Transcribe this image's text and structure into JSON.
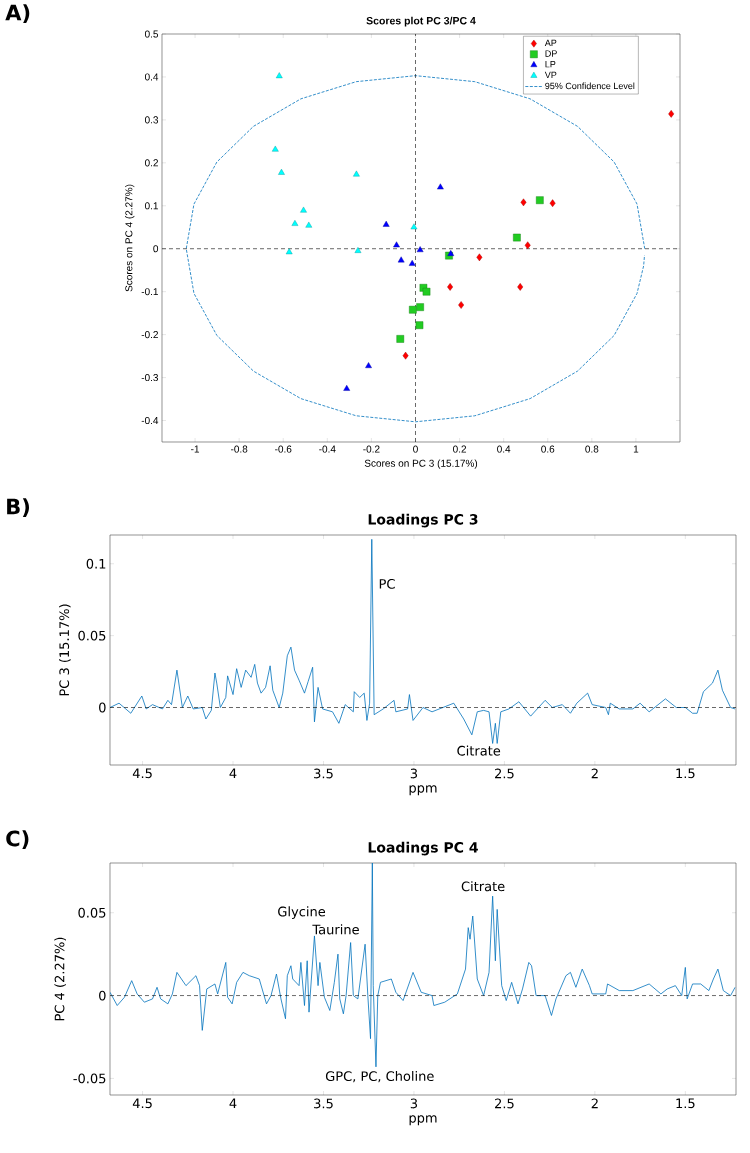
{
  "chart_data": [
    {
      "type": "scatter",
      "title": "Scores plot PC 3/PC 4",
      "xlabel": "Scores on PC 3 (15.17%)",
      "ylabel": "Scores on PC 4 (2.27%)",
      "annotations": [
        "A)"
      ],
      "xlim": [
        -1.15,
        1.2
      ],
      "ylim": [
        -0.45,
        0.5
      ],
      "xticks": [
        -1,
        -0.8,
        -0.6,
        -0.4,
        -0.2,
        0,
        0.2,
        0.4,
        0.6,
        0.8,
        1
      ],
      "yticks": [
        -0.4,
        -0.3,
        -0.2,
        -0.1,
        0,
        0.1,
        0.2,
        0.3,
        0.4,
        0.5
      ],
      "legend": "top right",
      "ref_lines": [
        {
          "axis": "x",
          "value": 0,
          "color": "#000000",
          "line_style": "dashed"
        },
        {
          "axis": "y",
          "value": 0,
          "color": "#000000",
          "line_style": "dashed"
        }
      ],
      "series": [
        {
          "name": "AP",
          "color": "#ff0000",
          "marker": "diamond",
          "x": [
            1.16,
            0.49,
            0.622,
            0.509,
            0.29,
            0.157,
            0.475,
            0.207,
            -0.045
          ],
          "values": [
            0.314,
            0.108,
            0.106,
            0.008,
            -0.02,
            -0.089,
            -0.089,
            -0.131,
            -0.249
          ]
        },
        {
          "name": "DP",
          "color": "#22cc22",
          "marker": "square",
          "x": [
            0.564,
            0.46,
            0.152,
            0.036,
            0.05,
            0.021,
            -0.012,
            0.018,
            -0.069
          ],
          "values": [
            0.113,
            0.026,
            -0.016,
            -0.091,
            -0.1,
            -0.136,
            -0.142,
            -0.178,
            -0.21
          ]
        },
        {
          "name": "LP",
          "color": "#0000ff",
          "marker": "triangle",
          "x": [
            0.113,
            -0.133,
            -0.086,
            0.021,
            0.16,
            -0.065,
            -0.015,
            -0.213,
            -0.312
          ],
          "values": [
            0.143,
            0.056,
            0.008,
            -0.003,
            -0.012,
            -0.027,
            -0.035,
            -0.273,
            -0.326
          ]
        },
        {
          "name": "VP",
          "color": "#00ffff",
          "marker": "triangle",
          "x": [
            -0.618,
            -0.636,
            -0.608,
            -0.268,
            -0.508,
            -0.547,
            -0.484,
            -0.007,
            -0.573,
            -0.261
          ],
          "values": [
            0.402,
            0.231,
            0.177,
            0.173,
            0.089,
            0.058,
            0.054,
            0.05,
            -0.008,
            -0.005
          ]
        },
        {
          "name": "95% Confidence Level",
          "type": "line",
          "color": "#0072bd",
          "marker": "none",
          "line_style": "dashed",
          "x": [
            1.04,
            1.005,
            0.901,
            0.735,
            0.52,
            0.269,
            0,
            -0.269,
            -0.52,
            -0.735,
            -0.901,
            -1.005,
            -1.04,
            -1.005,
            -0.901,
            -0.735,
            -0.52,
            -0.269,
            0,
            0.269,
            0.52,
            0.735,
            0.901,
            1.005,
            1.035,
            1.039
          ],
          "values": [
            0,
            0.104,
            0.202,
            0.285,
            0.349,
            0.389,
            0.403,
            0.389,
            0.349,
            0.285,
            0.202,
            0.104,
            0,
            -0.104,
            -0.202,
            -0.285,
            -0.349,
            -0.389,
            -0.403,
            -0.389,
            -0.349,
            -0.285,
            -0.202,
            -0.104,
            -0.04,
            -0.015
          ]
        }
      ]
    },
    {
      "type": "line",
      "title": "Loadings PC 3",
      "xlabel": "ppm",
      "ylabel": "PC 3 (15.17%)",
      "annotations": [
        "B)",
        "PC",
        "Citrate"
      ],
      "xlim": [
        4.68,
        1.22
      ],
      "ylim": [
        -0.04,
        0.12
      ],
      "xticks": [
        4.5,
        4,
        3.5,
        3,
        2.5,
        2,
        1.5
      ],
      "yticks": [
        0,
        0.05,
        0.1
      ],
      "ref_lines": [
        {
          "axis": "y",
          "value": 0,
          "color": "#000000",
          "line_style": "dashed"
        }
      ],
      "series": [
        {
          "color": "#0072bd",
          "x": [
            4.68,
            4.63,
            4.565,
            4.504,
            4.48,
            4.445,
            4.39,
            4.36,
            4.34,
            4.31,
            4.28,
            4.25,
            4.22,
            4.17,
            4.15,
            4.12,
            4.1,
            4.09,
            4.07,
            4.04,
            4.03,
            4.0,
            3.98,
            3.955,
            3.93,
            3.9,
            3.88,
            3.865,
            3.845,
            3.82,
            3.795,
            3.78,
            3.745,
            3.725,
            3.7,
            3.68,
            3.66,
            3.635,
            3.605,
            3.585,
            3.56,
            3.55,
            3.53,
            3.505,
            3.45,
            3.415,
            3.38,
            3.335,
            3.33,
            3.3,
            3.275,
            3.26,
            3.245,
            3.233,
            3.22,
            3.17,
            3.11,
            3.1,
            3.035,
            3.025,
            3.005,
            2.95,
            2.9,
            2.78,
            2.725,
            2.68,
            2.65,
            2.615,
            2.585,
            2.565,
            2.55,
            2.54,
            2.52,
            2.475,
            2.42,
            2.355,
            2.275,
            2.235,
            2.18,
            2.135,
            2.1,
            2.04,
            2.015,
            1.94,
            1.925,
            1.915,
            1.865,
            1.79,
            1.75,
            1.7,
            1.61,
            1.55,
            1.5,
            1.46,
            1.435,
            1.4,
            1.35,
            1.32,
            1.295,
            1.25,
            1.225
          ],
          "values": [
            0,
            0.003,
            -0.004,
            0.008,
            -0.001,
            0.002,
            -0.001,
            0.005,
            0.002,
            0.026,
            0,
            0.008,
            -0.001,
            0,
            -0.008,
            -0.002,
            0.024,
            0.017,
            0,
            0.007,
            0.022,
            0.009,
            0.027,
            0.014,
            0.026,
            0.021,
            0.03,
            0.017,
            0.01,
            0.014,
            0.029,
            0.012,
            0,
            0.01,
            0.036,
            0.042,
            0.026,
            0.019,
            0.01,
            0.018,
            0.028,
            -0.01,
            0.014,
            -0.001,
            -0.003,
            -0.011,
            0.002,
            -0.003,
            0.011,
            0.007,
            0.01,
            -0.009,
            0.003,
            0.117,
            -0.005,
            -0.001,
            0.005,
            -0.003,
            -0.001,
            0.009,
            -0.009,
            0,
            -0.003,
            0.003,
            -0.008,
            -0.019,
            -0.003,
            -0.002,
            -0.003,
            -0.025,
            -0.011,
            -0.025,
            -0.003,
            -0.001,
            0.004,
            -0.006,
            0.005,
            0,
            0.002,
            -0.004,
            0.003,
            0.01,
            0.002,
            0,
            -0.005,
            0.003,
            -0.001,
            -0.001,
            0.003,
            -0.003,
            0.006,
            0,
            0,
            -0.004,
            -0.004,
            0.011,
            0.017,
            0.026,
            0.012,
            0,
            -0.001
          ]
        }
      ]
    },
    {
      "type": "line",
      "title": "Loadings PC 4",
      "xlabel": "ppm",
      "ylabel": "PC 4 (2.27%)",
      "annotations": [
        "C)",
        "Glycine",
        "Taurine",
        "GPC, PC, Choline",
        "Citrate"
      ],
      "xlim": [
        4.68,
        1.22
      ],
      "ylim": [
        -0.06,
        0.08
      ],
      "xticks": [
        4.5,
        4,
        3.5,
        3,
        2.5,
        2,
        1.5
      ],
      "yticks": [
        -0.05,
        0,
        0.05
      ],
      "ref_lines": [
        {
          "axis": "y",
          "value": 0,
          "color": "#000000",
          "line_style": "dashed"
        }
      ],
      "series": [
        {
          "color": "#0072bd",
          "x": [
            4.68,
            4.64,
            4.6,
            4.56,
            4.53,
            4.49,
            4.445,
            4.42,
            4.4,
            4.36,
            4.335,
            4.31,
            4.26,
            4.205,
            4.185,
            4.17,
            4.145,
            4.1,
            4.085,
            4.04,
            4.03,
            4.005,
            3.98,
            3.945,
            3.91,
            3.855,
            3.815,
            3.79,
            3.76,
            3.735,
            3.71,
            3.7,
            3.68,
            3.67,
            3.635,
            3.625,
            3.605,
            3.59,
            3.58,
            3.55,
            3.53,
            3.52,
            3.495,
            3.465,
            3.44,
            3.42,
            3.41,
            3.39,
            3.375,
            3.35,
            3.335,
            3.31,
            3.27,
            3.255,
            3.24,
            3.23,
            3.225,
            3.21,
            3.2,
            3.185,
            3.125,
            3.1,
            3.06,
            3.005,
            2.96,
            2.9,
            2.89,
            2.83,
            2.76,
            2.715,
            2.7,
            2.69,
            2.675,
            2.65,
            2.615,
            2.585,
            2.565,
            2.55,
            2.54,
            2.515,
            2.49,
            2.46,
            2.425,
            2.4,
            2.365,
            2.35,
            2.325,
            2.275,
            2.24,
            2.215,
            2.16,
            2.135,
            2.105,
            2.07,
            2.03,
            2.015,
            1.94,
            1.93,
            1.865,
            1.79,
            1.7,
            1.635,
            1.6,
            1.555,
            1.52,
            1.5,
            1.49,
            1.46,
            1.415,
            1.37,
            1.345,
            1.32,
            1.29,
            1.25,
            1.225
          ],
          "values": [
            0.002,
            -0.006,
            -0.001,
            0.009,
            0.001,
            -0.004,
            -0.002,
            0.005,
            -0.002,
            -0.005,
            0.001,
            0.014,
            0.006,
            0.012,
            0.006,
            -0.021,
            0.004,
            0.007,
            0.001,
            0.02,
            -0.001,
            -0.005,
            0.008,
            0.014,
            0.012,
            0.01,
            -0.005,
            0,
            0.013,
            -0.002,
            -0.014,
            0.012,
            0.018,
            0.01,
            0.006,
            0.02,
            -0.006,
            0.021,
            -0.01,
            0.036,
            0.006,
            0.02,
            -0.001,
            -0.009,
            0.008,
            0.025,
            -0.002,
            -0.011,
            0,
            0.032,
            0,
            -0.002,
            0.031,
            0,
            -0.026,
            0.08,
            0.006,
            -0.043,
            0,
            0.008,
            0.01,
            0.002,
            -0.003,
            0.014,
            0.002,
            0,
            -0.006,
            -0.004,
            0.001,
            0.016,
            0.041,
            0.034,
            0.048,
            0.01,
            0,
            0.014,
            0.06,
            0.021,
            0.052,
            0.006,
            -0.003,
            0.008,
            -0.005,
            0.004,
            0.02,
            0.018,
            0,
            0,
            -0.012,
            -0.002,
            0.012,
            0.014,
            0.005,
            0.016,
            0.006,
            0.001,
            0.001,
            0.007,
            0.003,
            0.003,
            0.007,
            0.001,
            0.004,
            0.006,
            0,
            0.017,
            -0.002,
            0.007,
            0.007,
            0.003,
            0.01,
            0.016,
            0.003,
            0,
            0.005
          ]
        }
      ]
    }
  ]
}
